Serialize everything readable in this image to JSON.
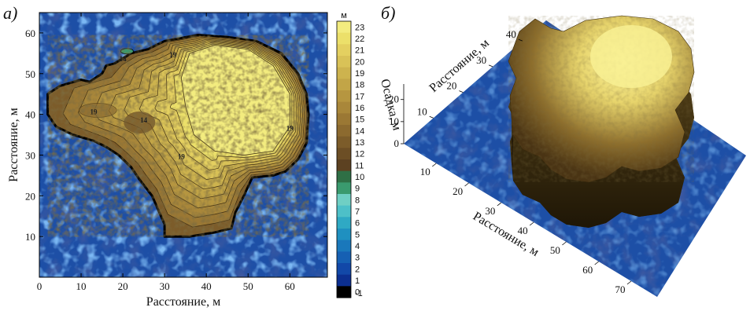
{
  "panel_a": {
    "label": "а)",
    "chart_data": {
      "type": "heatmap",
      "title": "",
      "xlabel": "Расстояние, м",
      "ylabel": "Расстояние, м",
      "xlim": [
        0,
        69
      ],
      "ylim": [
        0,
        65
      ],
      "x_ticks": [
        "0",
        "10",
        "20",
        "30",
        "40",
        "50",
        "60"
      ],
      "y_ticks": [
        "10",
        "20",
        "30",
        "40",
        "50",
        "60"
      ],
      "outline_xy": [
        [
          2,
          45
        ],
        [
          5,
          47
        ],
        [
          10,
          48.5
        ],
        [
          12,
          48
        ],
        [
          15,
          50
        ],
        [
          16,
          52
        ],
        [
          18,
          52.5
        ],
        [
          22,
          55
        ],
        [
          26,
          56
        ],
        [
          30,
          58
        ],
        [
          38,
          59.5
        ],
        [
          45,
          59
        ],
        [
          52,
          58
        ],
        [
          58,
          55
        ],
        [
          62,
          50
        ],
        [
          64,
          45
        ],
        [
          64.5,
          40
        ],
        [
          64,
          33
        ],
        [
          62,
          29
        ],
        [
          59,
          26
        ],
        [
          56,
          25
        ],
        [
          51,
          24.5
        ],
        [
          49,
          20
        ],
        [
          47,
          16
        ],
        [
          46,
          12
        ],
        [
          42,
          11
        ],
        [
          36,
          10
        ],
        [
          30,
          10
        ],
        [
          30,
          13
        ],
        [
          27,
          20
        ],
        [
          24,
          24
        ],
        [
          22,
          27
        ],
        [
          19,
          30
        ],
        [
          16,
          32
        ],
        [
          13,
          33.5
        ],
        [
          8,
          35
        ],
        [
          4,
          37
        ],
        [
          2,
          40
        ]
      ],
      "plateau_xy": [
        [
          36,
          55
        ],
        [
          42,
          57
        ],
        [
          50,
          56
        ],
        [
          56,
          52
        ],
        [
          60,
          45
        ],
        [
          60,
          37
        ],
        [
          56,
          31
        ],
        [
          49,
          30
        ],
        [
          42,
          31
        ],
        [
          37,
          35
        ],
        [
          35,
          42
        ],
        [
          34,
          49
        ]
      ],
      "contour_labels": [
        {
          "text": "19",
          "x": 32,
          "y": 54
        },
        {
          "text": "14",
          "x": 20,
          "y": 53
        },
        {
          "text": "19",
          "x": 13,
          "y": 40
        },
        {
          "text": "14",
          "x": 25,
          "y": 38
        },
        {
          "text": "19",
          "x": 34,
          "y": 29
        },
        {
          "text": "19",
          "x": 60,
          "y": 36
        }
      ],
      "colorbar": {
        "unit": "м",
        "labels": [
          "23",
          "22",
          "21",
          "20",
          "19",
          "18",
          "17",
          "16",
          "15",
          "14",
          "13",
          "12",
          "11",
          "10",
          "9",
          "8",
          "7",
          "6",
          "5",
          "4",
          "3",
          "2",
          "1",
          "0",
          "-1"
        ],
        "colors": [
          "#f3ec7f",
          "#ece06a",
          "#e4d060",
          "#d9c257",
          "#cdb34e",
          "#c2a547",
          "#b69640",
          "#a9873a",
          "#9b7834",
          "#8c6a2f",
          "#7c5c2a",
          "#6c4e25",
          "#5c4121",
          "#2f6f45",
          "#3a9a6e",
          "#6fcfc4",
          "#4dc0c8",
          "#2fa9c4",
          "#1f90c0",
          "#1a78bb",
          "#1660b3",
          "#1248a8",
          "#0c2f90",
          "#000000"
        ]
      }
    }
  },
  "panel_b": {
    "label": "б)",
    "chart_data": {
      "type": "surface3d",
      "title": "",
      "xlabel": "Расстояние, м",
      "ylabel": "Расстояние, м",
      "zlabel": "Осадка, м",
      "x_ticks": [
        "10",
        "20",
        "30",
        "40",
        "50",
        "60",
        "70"
      ],
      "y_ticks": [
        "10",
        "20",
        "30",
        "40"
      ],
      "z_ticks": [
        "0",
        "10",
        "20"
      ]
    }
  },
  "colors": {
    "water": "#1d4fa6",
    "water_dark": "#16408c",
    "water_light": "#4f7fd0",
    "plateau": "#f2ee8a",
    "brown": "#6e4f22"
  }
}
